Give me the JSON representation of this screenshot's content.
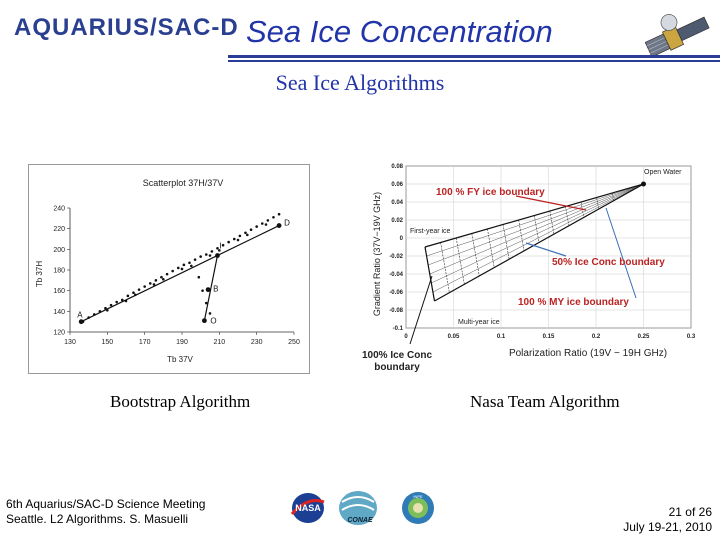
{
  "header": {
    "logo_text": "AQUARIUS/SAC-D",
    "title": "Sea Ice Concentration"
  },
  "subtitle": "Sea Ice Algorithms",
  "left_figure": {
    "caption": "Bootstrap Algorithm",
    "plot_title": "Scatterplot 37H/37V",
    "xlabel": "Tb 37V",
    "ylabel": "Tb 37H",
    "point_labels": [
      "A",
      "I",
      "B",
      "O",
      "D"
    ]
  },
  "right_figure": {
    "caption": "Nasa Team Algorithm",
    "xlabel": "Polarization Ratio  (19V − 19H GHz)",
    "ylabel": "Gradient Ratio (37V−19V GHz)",
    "labels": {
      "open_water": "Open Water",
      "first_year": "First-year ice",
      "multi_year": "Multi-year ice",
      "fy_boundary": "100 % FY ice boundary",
      "conc50": "50% Ice Conc boundary",
      "my_boundary": "100 % MY ice boundary",
      "conc100": "100% Ice Conc boundary"
    }
  },
  "chart_data": [
    {
      "type": "scatter",
      "title": "Scatterplot 37H/37V",
      "xlabel": "Tb 37V",
      "ylabel": "Tb 37H",
      "xticks": [
        "130",
        "150",
        "170",
        "190",
        "210",
        "230",
        "250"
      ],
      "yticks": [
        "120",
        "140",
        "160",
        "180",
        "200",
        "220",
        "240"
      ],
      "xlim": [
        130,
        250
      ],
      "ylim": [
        120,
        240
      ],
      "points": [
        [
          137,
          130
        ],
        [
          140,
          134
        ],
        [
          143,
          137
        ],
        [
          146,
          140
        ],
        [
          149,
          143
        ],
        [
          152,
          146
        ],
        [
          155,
          149
        ],
        [
          158,
          151
        ],
        [
          161,
          155
        ],
        [
          164,
          158
        ],
        [
          167,
          161
        ],
        [
          170,
          164
        ],
        [
          173,
          167
        ],
        [
          176,
          170
        ],
        [
          179,
          173
        ],
        [
          182,
          176
        ],
        [
          185,
          179
        ],
        [
          188,
          182
        ],
        [
          191,
          185
        ],
        [
          194,
          187
        ],
        [
          197,
          190
        ],
        [
          200,
          193
        ],
        [
          203,
          195
        ],
        [
          206,
          198
        ],
        [
          209,
          201
        ],
        [
          212,
          204
        ],
        [
          215,
          207
        ],
        [
          218,
          210
        ],
        [
          221,
          213
        ],
        [
          224,
          216
        ],
        [
          227,
          219
        ],
        [
          230,
          222
        ],
        [
          233,
          225
        ],
        [
          236,
          228
        ],
        [
          239,
          231
        ],
        [
          242,
          234
        ],
        [
          150,
          141
        ],
        [
          165,
          156
        ],
        [
          180,
          171
        ],
        [
          195,
          184
        ],
        [
          210,
          199
        ],
        [
          225,
          214
        ],
        [
          160,
          150
        ],
        [
          175,
          166
        ],
        [
          190,
          181
        ],
        [
          205,
          194
        ],
        [
          220,
          209
        ],
        [
          235,
          224
        ],
        [
          199,
          173
        ],
        [
          201,
          160
        ],
        [
          203,
          148
        ],
        [
          205,
          138
        ]
      ],
      "labeled_points": [
        {
          "label": "A",
          "x": 136,
          "y": 130
        },
        {
          "label": "I",
          "x": 209,
          "y": 194
        },
        {
          "label": "B",
          "x": 204,
          "y": 161
        },
        {
          "label": "O",
          "x": 202,
          "y": 131
        },
        {
          "label": "D",
          "x": 242,
          "y": 223
        }
      ]
    },
    {
      "type": "line",
      "xlabel": "Polarization Ratio  (19V − 19H GHz)",
      "ylabel": "Gradient Ratio (37V−19V GHz)",
      "xticks": [
        "0",
        "0.05",
        "0.1",
        "0.15",
        "0.2",
        "0.25",
        "0.3"
      ],
      "yticks": [
        "0.08",
        "0.06",
        "0.04",
        "0.02",
        "0",
        "-0.02",
        "-0.04",
        "-0.06",
        "-0.08",
        "-0.1"
      ],
      "xlim": [
        0,
        0.3
      ],
      "ylim": [
        -0.1,
        0.08
      ],
      "series": [
        {
          "name": "100 % FY ice boundary",
          "x": [
            0.02,
            0.25
          ],
          "y": [
            -0.01,
            0.06
          ]
        },
        {
          "name": "100 % MY ice boundary",
          "x": [
            0.03,
            0.25
          ],
          "y": [
            -0.07,
            0.06
          ]
        }
      ],
      "open_water": {
        "x": 0.25,
        "y": 0.06
      }
    }
  ],
  "footer": {
    "meeting": "6th Aquarius/SAC-D Science Meeting",
    "location": "Seattle. L2 Algorithms. S. Masuelli",
    "page": "21 of 26",
    "date": "July 19-21, 2010"
  },
  "logos": [
    "NASA",
    "CONAE",
    "INPE"
  ],
  "colors": {
    "title_blue": "#2134a8",
    "rule_blue": "#2a3c95",
    "annotation_red": "#b22222"
  }
}
